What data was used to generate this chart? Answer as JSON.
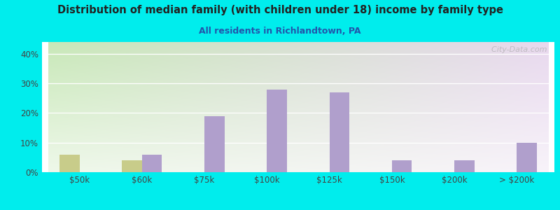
{
  "title": "Distribution of median family (with children under 18) income by family type",
  "subtitle": "All residents in Richlandtown, PA",
  "categories": [
    "$50k",
    "$60k",
    "$75k",
    "$100k",
    "$125k",
    "$150k",
    "$200k",
    "> $200k"
  ],
  "married_couple": [
    0,
    6,
    19,
    28,
    27,
    4,
    4,
    10
  ],
  "female_no_husband": [
    6,
    4,
    0,
    0,
    0,
    0,
    0,
    0
  ],
  "married_color": "#b09fcc",
  "female_color": "#c8cc8a",
  "bg_outer": "#00eded",
  "title_color": "#222222",
  "subtitle_color": "#2255aa",
  "yticks": [
    0,
    10,
    20,
    30,
    40
  ],
  "ylim": [
    0,
    44
  ],
  "bar_width": 0.32,
  "watermark": "  City-Data.com"
}
